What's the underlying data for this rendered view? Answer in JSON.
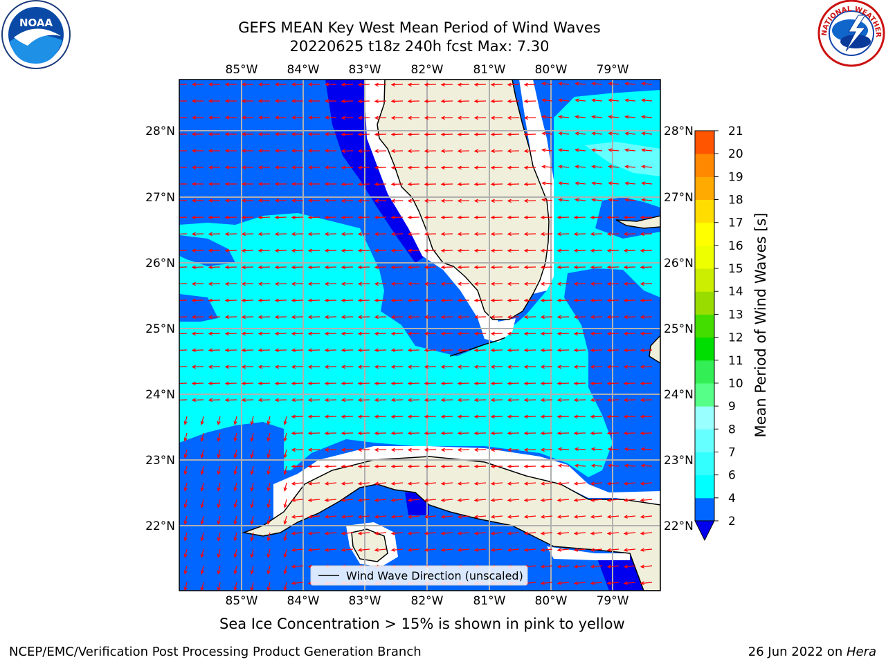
{
  "header": {
    "title_line1": "GEFS MEAN Key West Mean Period of Wind Waves",
    "title_line2": "20220625 t18z 240h fcst   Max: 7.30"
  },
  "logos": {
    "noaa": "NOAA",
    "nws_text": "NATIONAL WEATHER SERVICE"
  },
  "map": {
    "lon_labels": [
      "85°W",
      "84°W",
      "83°W",
      "82°W",
      "81°W",
      "80°W",
      "79°W"
    ],
    "lat_labels": [
      "28°N",
      "27°N",
      "26°N",
      "25°N",
      "24°N",
      "23°N",
      "22°N"
    ],
    "legend_label": "Wind Wave Direction (unscaled)",
    "colors": {
      "ocean_2_4": "#0066ff",
      "ocean_4_6": "#00ffff",
      "ocean_6_8": "#66ffff",
      "ocean_lt2": "#0000ee",
      "land": "#efefdb",
      "arrow": "#ff0000",
      "grid": "#b0b0b0"
    }
  },
  "colorbar": {
    "label": "Mean Period of Wind Waves [s]",
    "ticks": [
      "2",
      "4",
      "6",
      "7",
      "8",
      "9",
      "10",
      "11",
      "12",
      "13",
      "14",
      "15",
      "16",
      "17",
      "18",
      "19",
      "20",
      "21"
    ],
    "colors": [
      "#0066ff",
      "#00ffff",
      "#33ffff",
      "#66ffff",
      "#99ffff",
      "#55ff88",
      "#33ee55",
      "#00dd00",
      "#44dd00",
      "#99dd00",
      "#ccee00",
      "#eeff00",
      "#ffff00",
      "#ffdd00",
      "#ffaa00",
      "#ff8800",
      "#ff5500",
      "#ff2200",
      "#ff0000"
    ],
    "under_color": "#0000ee"
  },
  "footer": {
    "note": "Sea Ice Concentration > 15% is shown in pink to yellow",
    "left": "NCEP/EMC/Verification Post Processing Product Generation Branch",
    "date": "26 Jun 2022 on ",
    "host": "Hera"
  }
}
